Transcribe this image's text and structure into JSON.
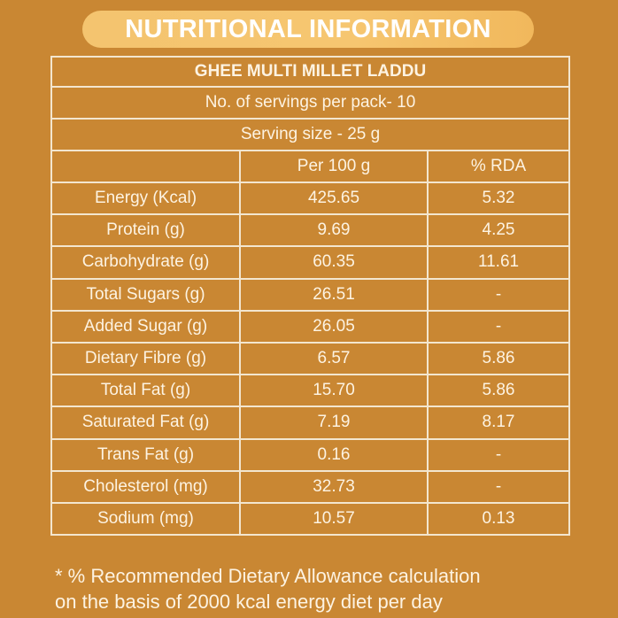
{
  "header": {
    "title": "NUTRITIONAL INFORMATION"
  },
  "table": {
    "product": "GHEE MULTI MILLET LADDU",
    "servings": "No. of servings per pack- 10",
    "serving_size": "Serving size - 25 g",
    "columns": [
      "",
      "Per 100 g",
      "% RDA"
    ],
    "rows": [
      {
        "nutrient": "Energy (Kcal)",
        "per100": "425.65",
        "rda": "5.32"
      },
      {
        "nutrient": "Protein (g)",
        "per100": "9.69",
        "rda": "4.25"
      },
      {
        "nutrient": "Carbohydrate (g)",
        "per100": "60.35",
        "rda": "11.61"
      },
      {
        "nutrient": "Total Sugars (g)",
        "per100": "26.51",
        "rda": "-"
      },
      {
        "nutrient": "Added Sugar (g)",
        "per100": "26.05",
        "rda": "-"
      },
      {
        "nutrient": "Dietary Fibre (g)",
        "per100": "6.57",
        "rda": "5.86"
      },
      {
        "nutrient": "Total Fat (g)",
        "per100": "15.70",
        "rda": "5.86"
      },
      {
        "nutrient": "Saturated Fat (g)",
        "per100": "7.19",
        "rda": "8.17"
      },
      {
        "nutrient": "Trans Fat (g)",
        "per100": "0.16",
        "rda": "-"
      },
      {
        "nutrient": "Cholesterol (mg)",
        "per100": "32.73",
        "rda": "-"
      },
      {
        "nutrient": "Sodium (mg)",
        "per100": "10.57",
        "rda": "0.13"
      }
    ]
  },
  "footnote": {
    "line1": "* % Recommended Dietary Allowance calculation",
    "line2": "on the basis of 2000 kcal energy diet per day"
  }
}
